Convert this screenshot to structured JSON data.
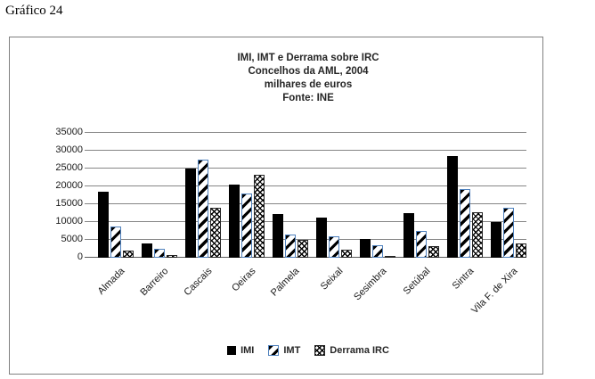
{
  "page": {
    "caption": "Gráfico 24"
  },
  "chart": {
    "title_lines": [
      "IMI, IMT e Derrama sobre IRC",
      "Concelhos da AML, 2004",
      "milhares de euros",
      "Fonte: INE"
    ]
  },
  "chart_data": {
    "type": "bar",
    "title": "IMI, IMT e Derrama sobre IRC",
    "subtitle": "Concelhos da AML, 2004 — milhares de euros — Fonte: INE",
    "categories": [
      "Almada",
      "Barreiro",
      "Cascais",
      "Oeiras",
      "Palmela",
      "Seixal",
      "Sesimbra",
      "Setúbal",
      "Sintra",
      "Vila F. de Xira"
    ],
    "series": [
      {
        "name": "IMI",
        "style": "solid-black",
        "values": [
          18500,
          4000,
          24900,
          20400,
          12300,
          11300,
          5300,
          12400,
          28400,
          10000
        ]
      },
      {
        "name": "IMT",
        "style": "diagonal-stripe",
        "values": [
          8700,
          2600,
          27600,
          17900,
          6500,
          6100,
          3500,
          7500,
          19300,
          14100
        ]
      },
      {
        "name": "Derrama IRC",
        "style": "crosshatch",
        "values": [
          2100,
          700,
          14000,
          23200,
          4900,
          2300,
          500,
          3300,
          12700,
          3900
        ]
      }
    ],
    "ylim": [
      0,
      35000
    ],
    "ytick_step": 5000,
    "yticks": [
      0,
      5000,
      10000,
      15000,
      20000,
      25000,
      30000,
      35000
    ],
    "grid": true,
    "legend_position": "bottom",
    "colors": {
      "imi_fill": "#000000",
      "imt_border": "#4f81bd",
      "stripe": "#000000",
      "frame_border": "#808080",
      "gridline": "#868686"
    }
  }
}
